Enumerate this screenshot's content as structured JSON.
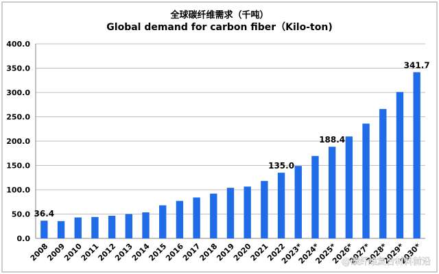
{
  "chart_data": {
    "type": "bar",
    "title_cn": "全球碳纤维需求（千吨）",
    "title": "Global demand for carbon fiber（Kilo-ton)",
    "xlabel": "",
    "ylabel": "",
    "ylim": [
      0,
      400
    ],
    "yticks": [
      "0.0",
      "50.0",
      "100.0",
      "150.0",
      "200.0",
      "250.0",
      "300.0",
      "350.0",
      "400.0"
    ],
    "grid": true,
    "bar_color": "#1f6be8",
    "categories": [
      "2008",
      "2009",
      "2010",
      "2011",
      "2012",
      "2013",
      "2014",
      "2015",
      "2016",
      "2017",
      "2018",
      "2019",
      "2020",
      "2021",
      "2022",
      "2023*",
      "2024*",
      "2025*",
      "2026*",
      "2027*",
      "2028*",
      "2029*",
      "2030*"
    ],
    "values": [
      36.4,
      35.5,
      43,
      44,
      46.5,
      50,
      53.5,
      68,
      77,
      84,
      92,
      104,
      106.5,
      118,
      135.0,
      149,
      169.5,
      188.4,
      209.5,
      236,
      266,
      301,
      341.7
    ],
    "data_labels": [
      {
        "index": 0,
        "text": "36.4"
      },
      {
        "index": 14,
        "text": "135.0"
      },
      {
        "index": 17,
        "text": "188.4"
      },
      {
        "index": 22,
        "text": "341.7"
      }
    ]
  },
  "watermark": {
    "text": "@碳纤维复合材料前沿"
  }
}
